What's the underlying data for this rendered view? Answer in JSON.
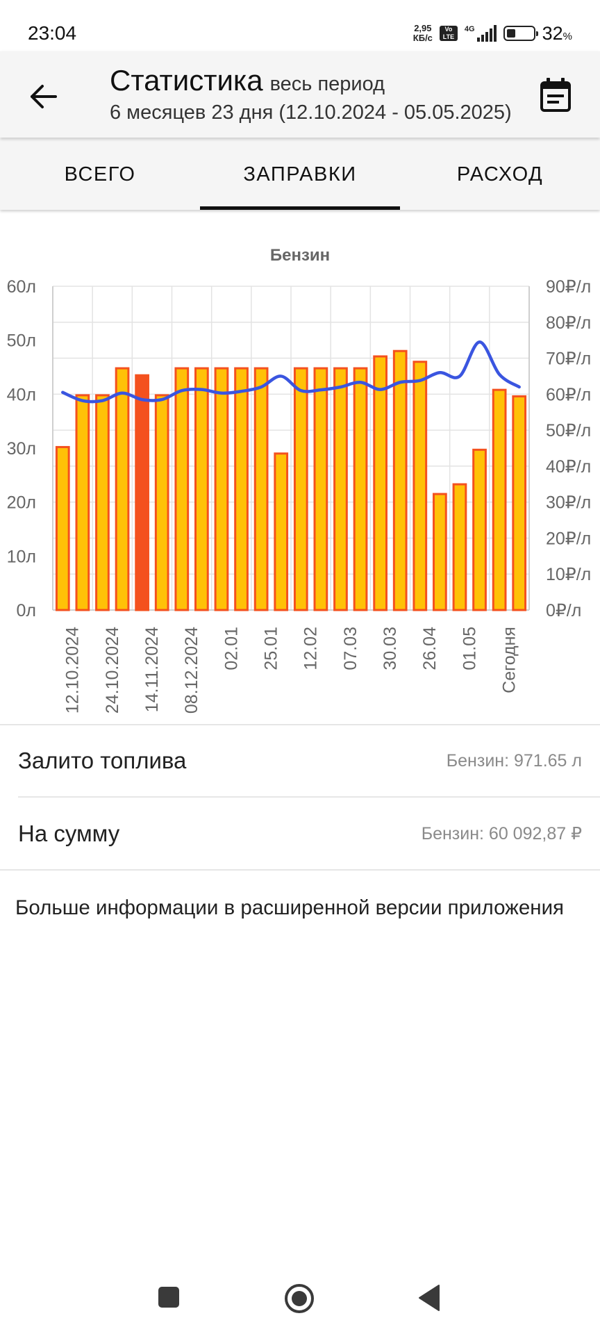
{
  "status_bar": {
    "time": "23:04",
    "speed_value": "2,95",
    "speed_unit": "КБ/с",
    "volte": "Vo LTE",
    "network": "4G",
    "battery_percent": "32",
    "battery_unit": "%"
  },
  "header": {
    "title": "Статистика",
    "period_label": "весь период",
    "subtitle": "6 месяцев 23 дня (12.10.2024 - 05.05.2025)"
  },
  "tabs": [
    {
      "label": "ВСЕГО",
      "active": false
    },
    {
      "label": "ЗАПРАВКИ",
      "active": true
    },
    {
      "label": "РАСХОД",
      "active": false
    }
  ],
  "chart_data": {
    "type": "bar",
    "title": "Бензин",
    "left_axis": {
      "min": 0,
      "max": 60,
      "ticks": [
        "0л",
        "10л",
        "20л",
        "30л",
        "40л",
        "50л",
        "60л"
      ]
    },
    "right_axis": {
      "min": 0,
      "max": 90,
      "ticks": [
        "0₽/л",
        "10₽/л",
        "20₽/л",
        "30₽/л",
        "40₽/л",
        "50₽/л",
        "60₽/л",
        "70₽/л",
        "80₽/л",
        "90₽/л"
      ]
    },
    "x_tick_labels": [
      "12.10.2024",
      "24.10.2024",
      "14.11.2024",
      "08.12.2024",
      "02.01",
      "25.01",
      "12.02",
      "07.03",
      "30.03",
      "26.04",
      "01.05",
      "Сегодня"
    ],
    "series": [
      {
        "type": "bar",
        "axis": "left",
        "values": [
          30.2,
          39.8,
          39.8,
          44.8,
          43.5,
          39.8,
          44.8,
          44.8,
          44.8,
          44.8,
          44.8,
          29.0,
          44.8,
          44.8,
          44.8,
          44.8,
          47.0,
          48.0,
          46.0,
          21.5,
          23.3,
          29.7,
          40.8,
          39.6
        ],
        "highlight_index": 4,
        "fill_color": "#FFC107",
        "stroke_color": "#F4511E",
        "highlight_fill_color": "#F4511E"
      },
      {
        "type": "line",
        "axis": "right",
        "color": "#3A55E0",
        "values": [
          60.5,
          58.2,
          58.2,
          60.3,
          58.5,
          58.5,
          61.0,
          61.3,
          60.3,
          60.8,
          62.0,
          65.0,
          61.0,
          61.2,
          62.0,
          63.3,
          61.3,
          63.3,
          63.8,
          66.0,
          65.0,
          74.5,
          65.5,
          62.0
        ]
      }
    ],
    "grid": true
  },
  "summary": {
    "fuel_label": "Залито топлива",
    "fuel_value": "Бензин: 971.65 л",
    "sum_label": "На сумму",
    "sum_value": "Бензин: 60 092,87 ₽"
  },
  "more_info": "Больше информации в расширенной версии приложения",
  "icons": {
    "back": "arrow-back-icon",
    "calendar": "calendar-icon",
    "nav_recents": "square-icon",
    "nav_home": "circle-icon",
    "nav_back": "triangle-back-icon"
  },
  "colors": {
    "bar_fill": "#FFC107",
    "bar_stroke": "#F4511E",
    "price_line": "#3A55E0",
    "header_bg": "#F5F5F5"
  }
}
